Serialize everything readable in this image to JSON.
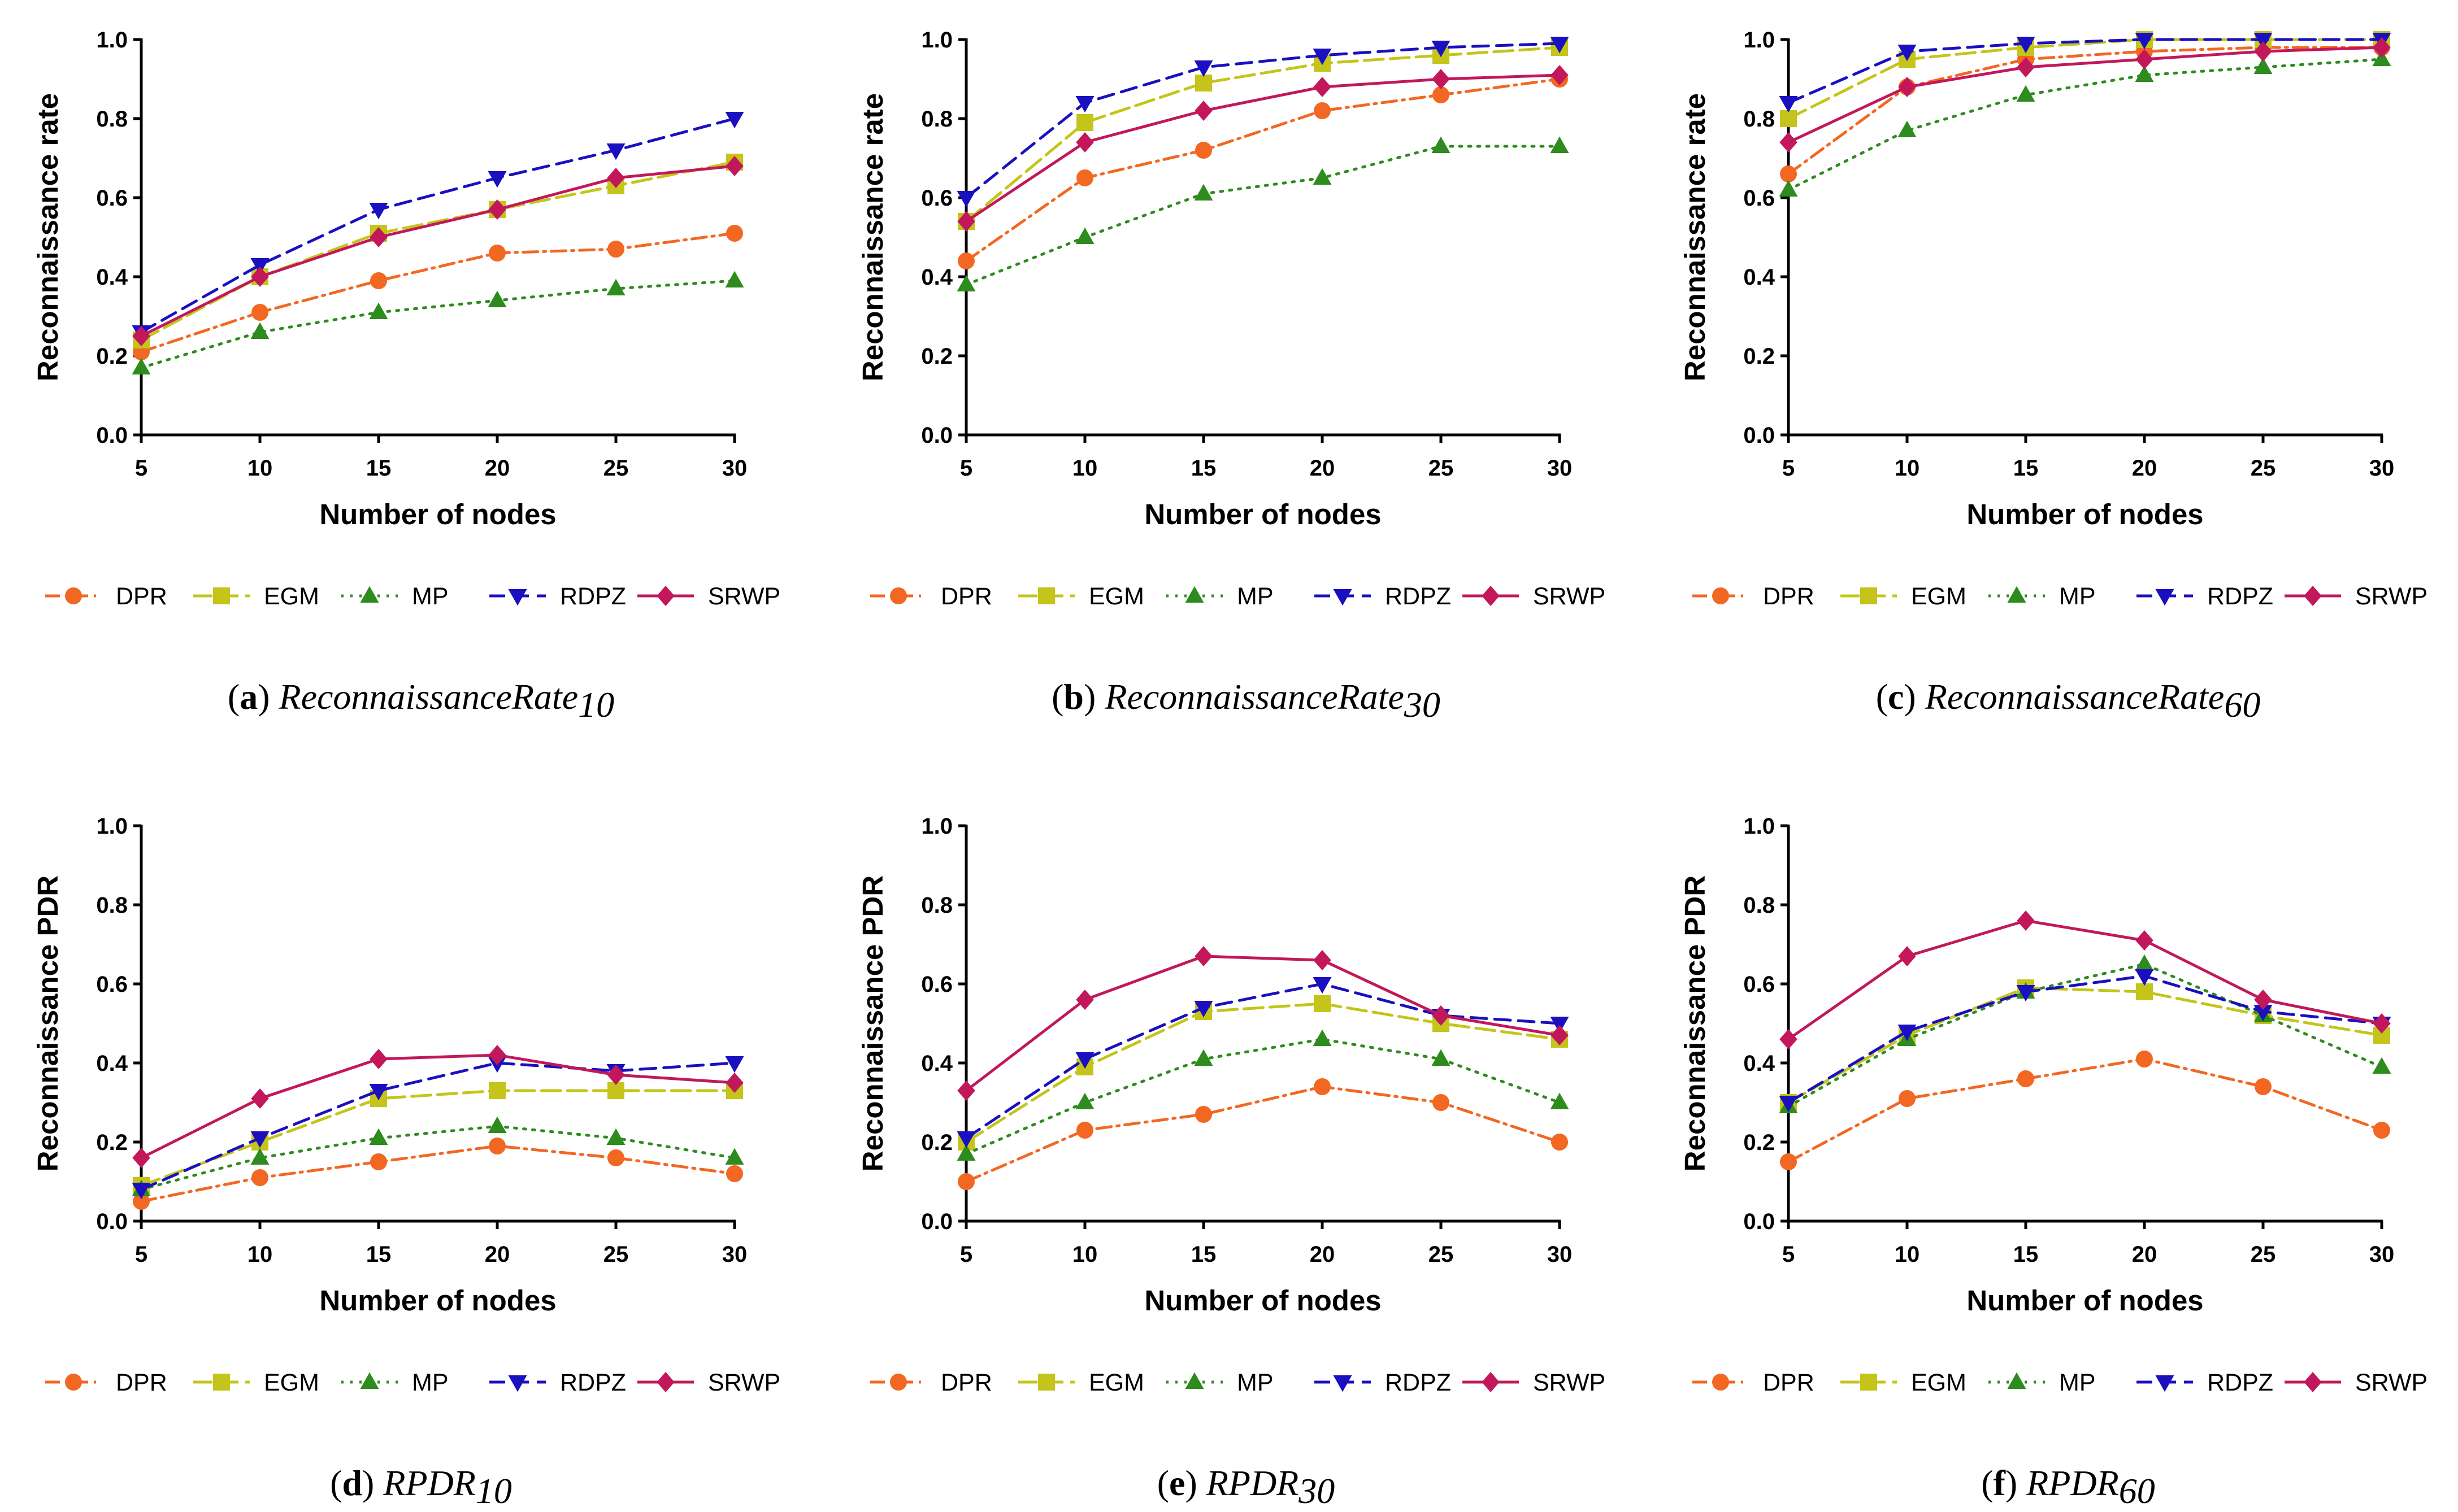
{
  "figure": {
    "series_styles": [
      {
        "name": "DPR",
        "color": "#f26722",
        "marker": "circle",
        "dash": "dashdot"
      },
      {
        "name": "EGM",
        "color": "#c4c41a",
        "marker": "square",
        "dash": "longdash"
      },
      {
        "name": "MP",
        "color": "#2e8b1e",
        "marker": "triangle-up",
        "dash": "dotted"
      },
      {
        "name": "RDPZ",
        "color": "#1a10c0",
        "marker": "triangle-down",
        "dash": "dashed"
      },
      {
        "name": "SRWP",
        "color": "#c2185b",
        "marker": "diamond",
        "dash": "solid"
      }
    ],
    "legend_labels": [
      "DPR",
      "EGM",
      "MP",
      "RDPZ",
      "SRWP"
    ]
  },
  "chart_data": [
    {
      "type": "line",
      "caption": {
        "letter": "a",
        "name": "ReconnaissanceRate",
        "sub": "10"
      },
      "xlabel": "Number of nodes",
      "ylabel": "Reconnaissance rate",
      "x": [
        5,
        10,
        15,
        20,
        25,
        30
      ],
      "xticks": [
        "5",
        "10",
        "15",
        "20",
        "25",
        "30"
      ],
      "yticks": [
        "0.0",
        "0.2",
        "0.4",
        "0.6",
        "0.8",
        "1.0"
      ],
      "ylim": [
        0,
        1
      ],
      "xlim": [
        5,
        30
      ],
      "grid": false,
      "series": [
        {
          "name": "DPR",
          "values": [
            0.21,
            0.31,
            0.39,
            0.46,
            0.47,
            0.51
          ]
        },
        {
          "name": "EGM",
          "values": [
            0.24,
            0.4,
            0.51,
            0.57,
            0.63,
            0.69
          ]
        },
        {
          "name": "MP",
          "values": [
            0.17,
            0.26,
            0.31,
            0.34,
            0.37,
            0.39
          ]
        },
        {
          "name": "RDPZ",
          "values": [
            0.26,
            0.43,
            0.57,
            0.65,
            0.72,
            0.8
          ]
        },
        {
          "name": "SRWP",
          "values": [
            0.25,
            0.4,
            0.5,
            0.57,
            0.65,
            0.68
          ]
        }
      ]
    },
    {
      "type": "line",
      "caption": {
        "letter": "b",
        "name": "ReconnaissanceRate",
        "sub": "30"
      },
      "xlabel": "Number of nodes",
      "ylabel": "Reconnaissance rate",
      "x": [
        5,
        10,
        15,
        20,
        25,
        30
      ],
      "xticks": [
        "5",
        "10",
        "15",
        "20",
        "25",
        "30"
      ],
      "yticks": [
        "0.0",
        "0.2",
        "0.4",
        "0.6",
        "0.8",
        "1.0"
      ],
      "ylim": [
        0,
        1
      ],
      "xlim": [
        5,
        30
      ],
      "grid": false,
      "series": [
        {
          "name": "DPR",
          "values": [
            0.44,
            0.65,
            0.72,
            0.82,
            0.86,
            0.9
          ]
        },
        {
          "name": "EGM",
          "values": [
            0.54,
            0.79,
            0.89,
            0.94,
            0.96,
            0.98
          ]
        },
        {
          "name": "MP",
          "values": [
            0.38,
            0.5,
            0.61,
            0.65,
            0.73,
            0.73
          ]
        },
        {
          "name": "RDPZ",
          "values": [
            0.6,
            0.84,
            0.93,
            0.96,
            0.98,
            0.99
          ]
        },
        {
          "name": "SRWP",
          "values": [
            0.54,
            0.74,
            0.82,
            0.88,
            0.9,
            0.91
          ]
        }
      ]
    },
    {
      "type": "line",
      "caption": {
        "letter": "c",
        "name": "ReconnaissanceRate",
        "sub": "60"
      },
      "xlabel": "Number of nodes",
      "ylabel": "Reconnaissance rate",
      "x": [
        5,
        10,
        15,
        20,
        25,
        30
      ],
      "xticks": [
        "5",
        "10",
        "15",
        "20",
        "25",
        "30"
      ],
      "yticks": [
        "0.0",
        "0.2",
        "0.4",
        "0.6",
        "0.8",
        "1.0"
      ],
      "ylim": [
        0,
        1
      ],
      "xlim": [
        5,
        30
      ],
      "grid": false,
      "series": [
        {
          "name": "DPR",
          "values": [
            0.66,
            0.88,
            0.95,
            0.97,
            0.98,
            0.98
          ]
        },
        {
          "name": "EGM",
          "values": [
            0.8,
            0.95,
            0.98,
            1.0,
            1.0,
            1.0
          ]
        },
        {
          "name": "MP",
          "values": [
            0.62,
            0.77,
            0.86,
            0.91,
            0.93,
            0.95
          ]
        },
        {
          "name": "RDPZ",
          "values": [
            0.84,
            0.97,
            0.99,
            1.0,
            1.0,
            1.0
          ]
        },
        {
          "name": "SRWP",
          "values": [
            0.74,
            0.88,
            0.93,
            0.95,
            0.97,
            0.98
          ]
        }
      ]
    },
    {
      "type": "line",
      "caption": {
        "letter": "d",
        "name": "RPDR",
        "sub": "10"
      },
      "xlabel": "Number of nodes",
      "ylabel": "Reconnaissance PDR",
      "x": [
        5,
        10,
        15,
        20,
        25,
        30
      ],
      "xticks": [
        "5",
        "10",
        "15",
        "20",
        "25",
        "30"
      ],
      "yticks": [
        "0.0",
        "0.2",
        "0.4",
        "0.6",
        "0.8",
        "1.0"
      ],
      "ylim": [
        0,
        1
      ],
      "xlim": [
        5,
        30
      ],
      "grid": false,
      "series": [
        {
          "name": "DPR",
          "values": [
            0.05,
            0.11,
            0.15,
            0.19,
            0.16,
            0.12
          ]
        },
        {
          "name": "EGM",
          "values": [
            0.09,
            0.2,
            0.31,
            0.33,
            0.33,
            0.33
          ]
        },
        {
          "name": "MP",
          "values": [
            0.08,
            0.16,
            0.21,
            0.24,
            0.21,
            0.16
          ]
        },
        {
          "name": "RDPZ",
          "values": [
            0.08,
            0.21,
            0.33,
            0.4,
            0.38,
            0.4
          ]
        },
        {
          "name": "SRWP",
          "values": [
            0.16,
            0.31,
            0.41,
            0.42,
            0.37,
            0.35
          ]
        }
      ]
    },
    {
      "type": "line",
      "caption": {
        "letter": "e",
        "name": "RPDR",
        "sub": "30"
      },
      "xlabel": "Number of nodes",
      "ylabel": "Reconnaissance PDR",
      "x": [
        5,
        10,
        15,
        20,
        25,
        30
      ],
      "xticks": [
        "5",
        "10",
        "15",
        "20",
        "25",
        "30"
      ],
      "yticks": [
        "0.0",
        "0.2",
        "0.4",
        "0.6",
        "0.8",
        "1.0"
      ],
      "ylim": [
        0,
        1
      ],
      "xlim": [
        5,
        30
      ],
      "grid": false,
      "series": [
        {
          "name": "DPR",
          "values": [
            0.1,
            0.23,
            0.27,
            0.34,
            0.3,
            0.2
          ]
        },
        {
          "name": "EGM",
          "values": [
            0.2,
            0.39,
            0.53,
            0.55,
            0.5,
            0.46
          ]
        },
        {
          "name": "MP",
          "values": [
            0.17,
            0.3,
            0.41,
            0.46,
            0.41,
            0.3
          ]
        },
        {
          "name": "RDPZ",
          "values": [
            0.21,
            0.41,
            0.54,
            0.6,
            0.52,
            0.5
          ]
        },
        {
          "name": "SRWP",
          "values": [
            0.33,
            0.56,
            0.67,
            0.66,
            0.52,
            0.47
          ]
        }
      ]
    },
    {
      "type": "line",
      "caption": {
        "letter": "f",
        "name": "RPDR",
        "sub": "60"
      },
      "xlabel": "Number of nodes",
      "ylabel": "Reconnaissance PDR",
      "x": [
        5,
        10,
        15,
        20,
        25,
        30
      ],
      "xticks": [
        "5",
        "10",
        "15",
        "20",
        "25",
        "30"
      ],
      "yticks": [
        "0.0",
        "0.2",
        "0.4",
        "0.6",
        "0.8",
        "1.0"
      ],
      "ylim": [
        0,
        1
      ],
      "xlim": [
        5,
        30
      ],
      "grid": false,
      "series": [
        {
          "name": "DPR",
          "values": [
            0.15,
            0.31,
            0.36,
            0.41,
            0.34,
            0.23
          ]
        },
        {
          "name": "EGM",
          "values": [
            0.3,
            0.47,
            0.59,
            0.58,
            0.52,
            0.47
          ]
        },
        {
          "name": "MP",
          "values": [
            0.29,
            0.46,
            0.58,
            0.65,
            0.52,
            0.39
          ]
        },
        {
          "name": "RDPZ",
          "values": [
            0.3,
            0.48,
            0.58,
            0.62,
            0.53,
            0.5
          ]
        },
        {
          "name": "SRWP",
          "values": [
            0.46,
            0.67,
            0.76,
            0.71,
            0.56,
            0.5
          ]
        }
      ]
    }
  ]
}
